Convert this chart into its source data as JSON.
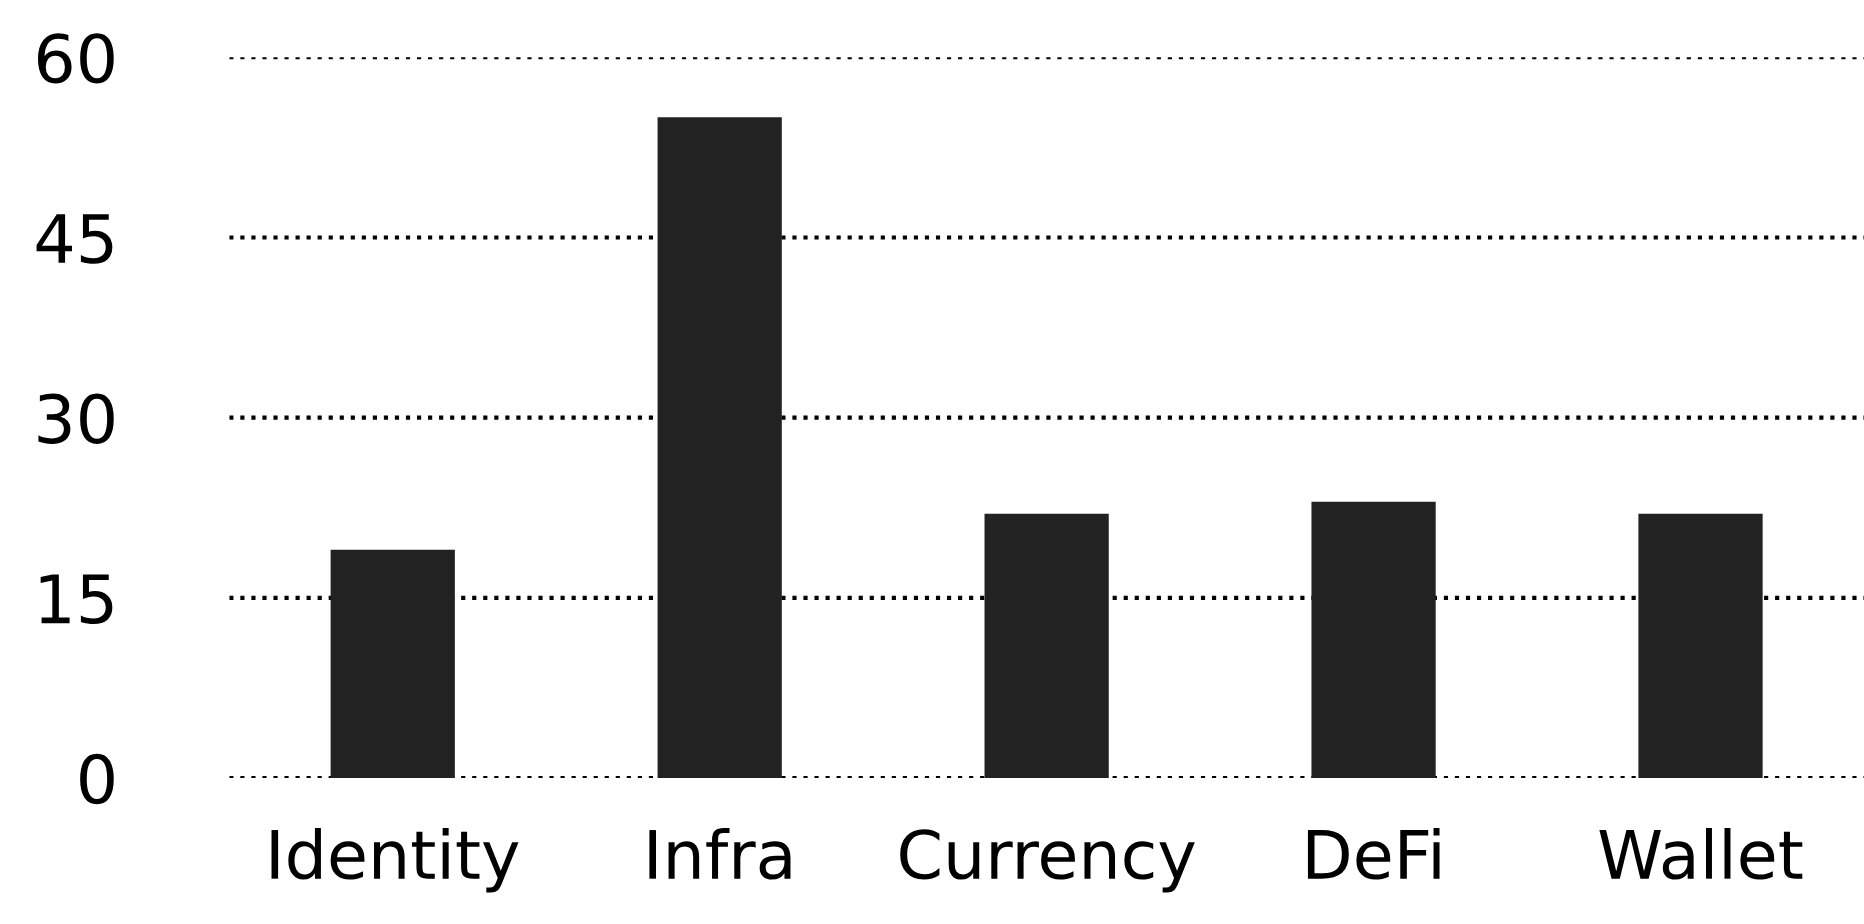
{
  "chart_data": {
    "type": "bar",
    "categories": [
      "Identity",
      "Infra",
      "Currency",
      "DeFi",
      "Wallet"
    ],
    "values": [
      19,
      55,
      22,
      23,
      22
    ],
    "color": "#222222",
    "ylim": [
      0,
      60
    ],
    "yticks": [
      0,
      15,
      30,
      45,
      60
    ],
    "grid": "y",
    "line_style": "dotted"
  }
}
